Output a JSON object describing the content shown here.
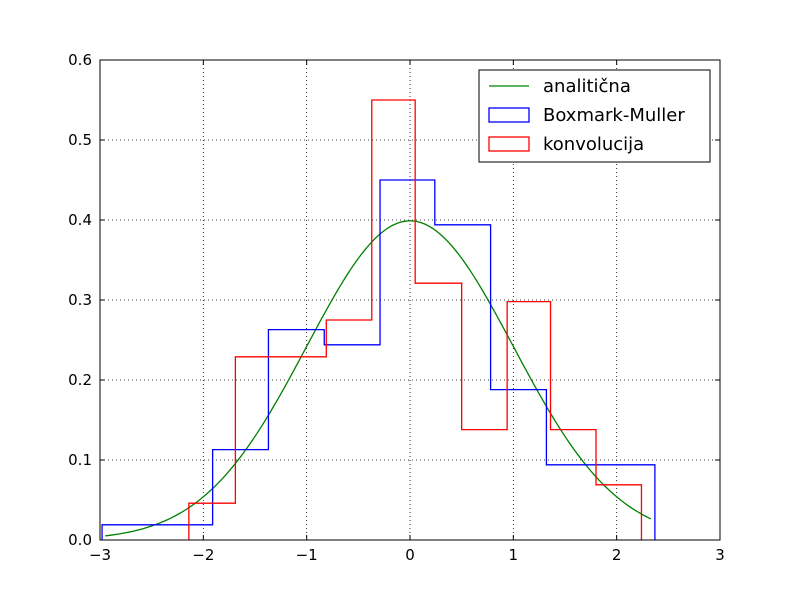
{
  "chart_data": {
    "type": "line",
    "title": "",
    "xlabel": "",
    "ylabel": "",
    "xlim": [
      -3,
      3
    ],
    "ylim": [
      0,
      0.6
    ],
    "grid": true,
    "x_ticks": [
      "−3",
      "−2",
      "−1",
      "0",
      "1",
      "2",
      "3"
    ],
    "y_ticks": [
      "0.0",
      "0.1",
      "0.2",
      "0.3",
      "0.4",
      "0.5",
      "0.6"
    ],
    "x_tick_values": [
      -3,
      -2,
      -1,
      0,
      1,
      2,
      3
    ],
    "y_tick_values": [
      0,
      0.1,
      0.2,
      0.3,
      0.4,
      0.5,
      0.6
    ],
    "legend_position": "top-right",
    "series": [
      {
        "name": "analitična",
        "kind": "curve",
        "function": "standard normal density",
        "color": "#008000",
        "x_range": [
          -2.95,
          2.33
        ]
      },
      {
        "name": "Boxmark-Muller",
        "kind": "step-histogram",
        "color": "#0000ff",
        "bin_edges": [
          -2.98,
          -1.91,
          -1.37,
          -0.83,
          -0.29,
          0.24,
          0.78,
          1.32,
          2.37
        ],
        "values": [
          0.019,
          0.113,
          0.263,
          0.244,
          0.45,
          0.394,
          0.188,
          0.094
        ]
      },
      {
        "name": "konvolucija",
        "kind": "step-histogram",
        "color": "#ff0000",
        "bin_edges": [
          -2.14,
          -1.69,
          -0.81,
          -0.37,
          0.05,
          0.5,
          0.94,
          1.36,
          1.8,
          2.24
        ],
        "values": [
          0.046,
          0.229,
          0.275,
          0.55,
          0.321,
          0.138,
          0.298,
          0.138,
          0.069
        ]
      }
    ]
  }
}
